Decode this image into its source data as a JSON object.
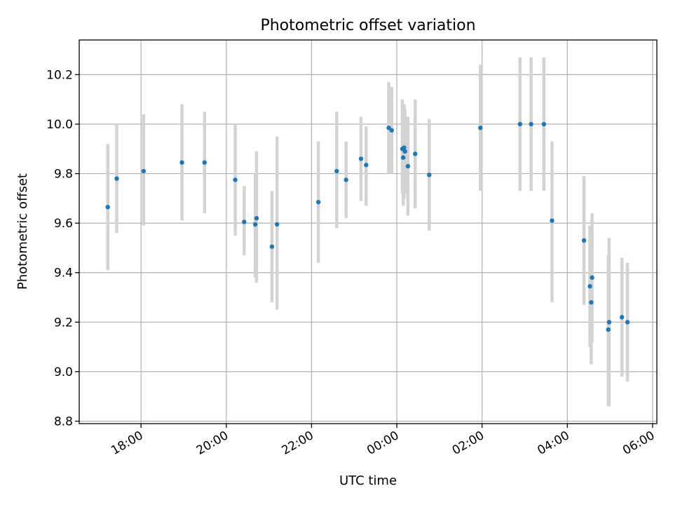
{
  "chart_data": {
    "type": "scatter",
    "title": "Photometric offset variation",
    "xlabel": "UTC time",
    "ylabel": "Photometric offset",
    "x_unit": "hours since 00:00 UTC",
    "xlim": [
      -7.45,
      6.1
    ],
    "ylim": [
      8.79,
      10.34
    ],
    "x_ticks": [
      {
        "value": -6,
        "label": "18:00"
      },
      {
        "value": -4,
        "label": "20:00"
      },
      {
        "value": -2,
        "label": "22:00"
      },
      {
        "value": 0,
        "label": "00:00"
      },
      {
        "value": 2,
        "label": "02:00"
      },
      {
        "value": 4,
        "label": "04:00"
      },
      {
        "value": 6,
        "label": "06:00"
      }
    ],
    "y_ticks": [
      {
        "value": 8.8,
        "label": "8.8"
      },
      {
        "value": 9.0,
        "label": "9.0"
      },
      {
        "value": 9.2,
        "label": "9.2"
      },
      {
        "value": 9.4,
        "label": "9.4"
      },
      {
        "value": 9.6,
        "label": "9.6"
      },
      {
        "value": 9.8,
        "label": "9.8"
      },
      {
        "value": 10.0,
        "label": "10.0"
      },
      {
        "value": 10.2,
        "label": "10.2"
      }
    ],
    "grid": true,
    "colors": {
      "points": "#1f77b4",
      "errorbars": "#d3d3d3"
    },
    "points": [
      {
        "x": -6.78,
        "y": 9.665,
        "lo": 9.41,
        "hi": 9.92
      },
      {
        "x": -6.57,
        "y": 9.78,
        "lo": 9.56,
        "hi": 10.0
      },
      {
        "x": -5.94,
        "y": 9.81,
        "lo": 9.59,
        "hi": 10.04
      },
      {
        "x": -5.04,
        "y": 9.845,
        "lo": 9.61,
        "hi": 10.08
      },
      {
        "x": -4.51,
        "y": 9.845,
        "lo": 9.64,
        "hi": 10.05
      },
      {
        "x": -3.79,
        "y": 9.775,
        "lo": 9.55,
        "hi": 10.0
      },
      {
        "x": -3.58,
        "y": 9.605,
        "lo": 9.47,
        "hi": 9.75
      },
      {
        "x": -3.32,
        "y": 9.595,
        "lo": 9.38,
        "hi": 9.8
      },
      {
        "x": -3.29,
        "y": 9.62,
        "lo": 9.36,
        "hi": 9.89
      },
      {
        "x": -2.93,
        "y": 9.505,
        "lo": 9.28,
        "hi": 9.73
      },
      {
        "x": -2.81,
        "y": 9.595,
        "lo": 9.25,
        "hi": 9.95
      },
      {
        "x": -1.84,
        "y": 9.685,
        "lo": 9.44,
        "hi": 9.93
      },
      {
        "x": -1.41,
        "y": 9.81,
        "lo": 9.58,
        "hi": 10.05
      },
      {
        "x": -1.19,
        "y": 9.775,
        "lo": 9.62,
        "hi": 9.93
      },
      {
        "x": -0.84,
        "y": 9.86,
        "lo": 9.69,
        "hi": 10.03
      },
      {
        "x": -0.72,
        "y": 9.835,
        "lo": 9.67,
        "hi": 9.99
      },
      {
        "x": -0.19,
        "y": 9.985,
        "lo": 9.8,
        "hi": 10.17
      },
      {
        "x": -0.12,
        "y": 9.975,
        "lo": 9.8,
        "hi": 10.15
      },
      {
        "x": 0.13,
        "y": 9.9,
        "lo": 9.72,
        "hi": 10.1
      },
      {
        "x": 0.15,
        "y": 9.865,
        "lo": 9.67,
        "hi": 10.07
      },
      {
        "x": 0.17,
        "y": 9.905,
        "lo": 9.7,
        "hi": 10.08
      },
      {
        "x": 0.19,
        "y": 9.89,
        "lo": 9.72,
        "hi": 10.06
      },
      {
        "x": 0.26,
        "y": 9.83,
        "lo": 9.63,
        "hi": 10.03
      },
      {
        "x": 0.43,
        "y": 9.88,
        "lo": 9.66,
        "hi": 10.1
      },
      {
        "x": 0.76,
        "y": 9.795,
        "lo": 9.57,
        "hi": 10.02
      },
      {
        "x": 1.96,
        "y": 9.985,
        "lo": 9.73,
        "hi": 10.24
      },
      {
        "x": 2.89,
        "y": 10.0,
        "lo": 9.73,
        "hi": 10.27
      },
      {
        "x": 3.15,
        "y": 10.0,
        "lo": 9.73,
        "hi": 10.27
      },
      {
        "x": 3.45,
        "y": 10.0,
        "lo": 9.73,
        "hi": 10.27
      },
      {
        "x": 3.64,
        "y": 9.61,
        "lo": 9.28,
        "hi": 9.93
      },
      {
        "x": 4.39,
        "y": 9.53,
        "lo": 9.27,
        "hi": 9.79
      },
      {
        "x": 4.53,
        "y": 9.345,
        "lo": 9.1,
        "hi": 9.59
      },
      {
        "x": 4.56,
        "y": 9.28,
        "lo": 9.03,
        "hi": 9.52
      },
      {
        "x": 4.58,
        "y": 9.38,
        "lo": 9.12,
        "hi": 9.64
      },
      {
        "x": 4.96,
        "y": 9.17,
        "lo": 8.86,
        "hi": 9.47
      },
      {
        "x": 4.98,
        "y": 9.2,
        "lo": 8.86,
        "hi": 9.54
      },
      {
        "x": 5.28,
        "y": 9.22,
        "lo": 8.98,
        "hi": 9.46
      },
      {
        "x": 5.41,
        "y": 9.2,
        "lo": 8.96,
        "hi": 9.44
      }
    ]
  }
}
